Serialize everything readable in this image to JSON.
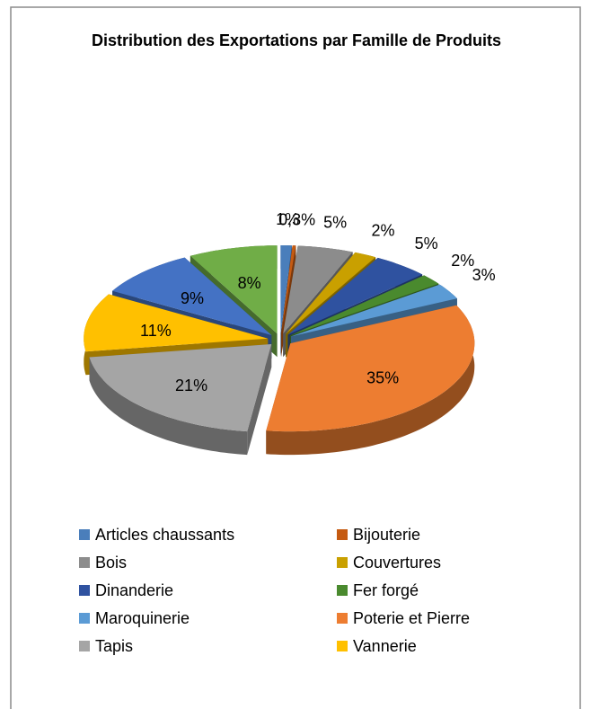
{
  "chart_data": {
    "type": "pie3d",
    "title": "Distribution des Exportations par Famille de Produits",
    "categories": [
      "Articles chaussants",
      "Bijouterie",
      "Bois",
      "Couvertures",
      "Dinanderie",
      "Fer forgé",
      "Maroquinerie",
      "Poterie et Pierre",
      "Tapis",
      "Vannerie",
      null,
      null
    ],
    "values": [
      1,
      0.3,
      5,
      2,
      5,
      2,
      3,
      35,
      21,
      11,
      9,
      8
    ],
    "value_labels": [
      "1%",
      "0,3%",
      "5%",
      "2%",
      "5%",
      "2%",
      "3%",
      "35%",
      "21%",
      "11%",
      "9%",
      "8%"
    ],
    "colors": [
      "#4a7ebb",
      "#c55a11",
      "#8c8c8c",
      "#c9a000",
      "#2f52a0",
      "#4a8a2e",
      "#5b9bd5",
      "#ed7d31",
      "#a5a5a5",
      "#ffc000",
      "#4472c4",
      "#70ad47"
    ],
    "legend": "bottom"
  }
}
